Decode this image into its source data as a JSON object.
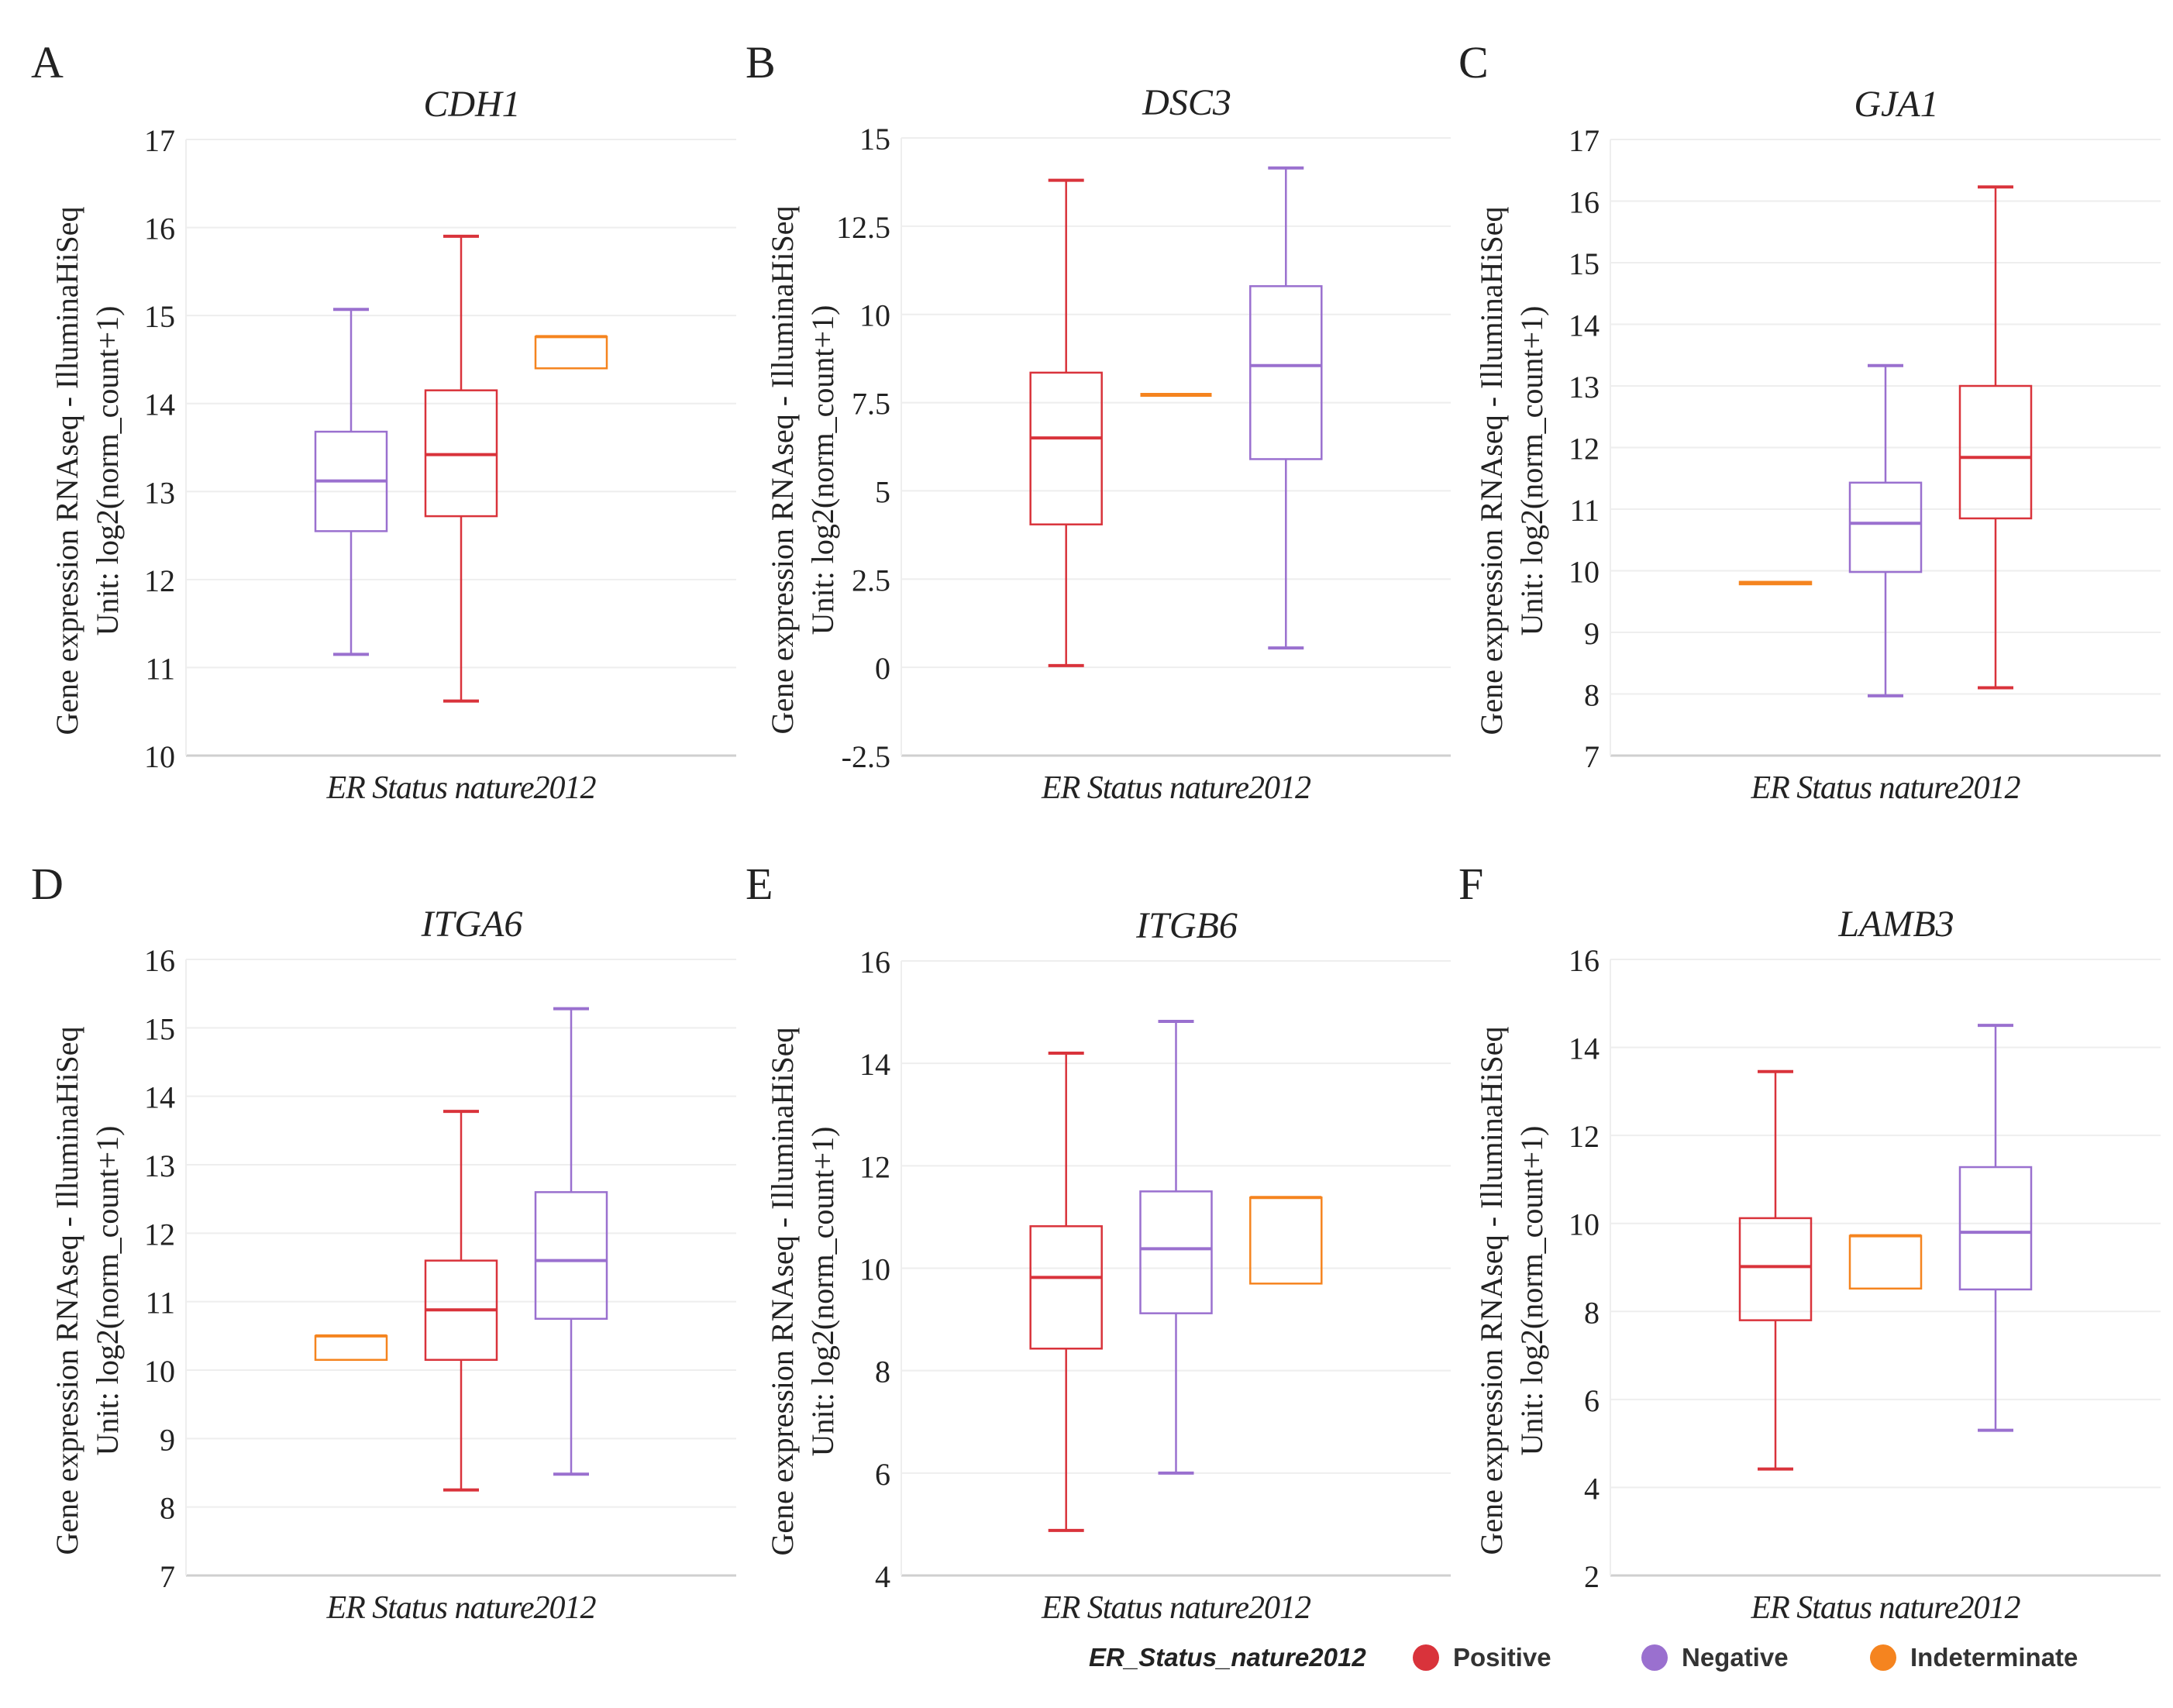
{
  "colors": {
    "Positive": "#d9333b",
    "Negative": "#9a70cf",
    "Indeterminate": "#f5841f",
    "grid": "#eeeeee",
    "axis": "#cfcfcf",
    "text": "#222222"
  },
  "legend": {
    "title": "ER_Status_nature2012",
    "items": [
      {
        "label": "Positive",
        "color": "#d9333b"
      },
      {
        "label": "Negative",
        "color": "#9a70cf"
      },
      {
        "label": "Indeterminate",
        "color": "#f5841f"
      }
    ]
  },
  "chart_data": [
    {
      "panel": "A",
      "type": "box",
      "title": "CDH1",
      "ylabel_line1": "Gene expression RNAseq - IlluminaHiSeq",
      "ylabel_line2": "Unit: log2(norm_count+1)",
      "xlabel": "ER Status nature2012",
      "ylim": [
        10,
        17
      ],
      "yticks": [
        "10",
        "11",
        "12",
        "13",
        "14",
        "15",
        "16",
        "17"
      ],
      "ytick_values": [
        10,
        11,
        12,
        13,
        14,
        15,
        16,
        17
      ],
      "boxes": [
        {
          "group": "Negative",
          "min": 11.15,
          "q1": 12.55,
          "median": 13.12,
          "q3": 13.68,
          "max": 15.07
        },
        {
          "group": "Positive",
          "min": 10.62,
          "q1": 12.72,
          "median": 13.42,
          "q3": 14.15,
          "max": 15.9
        },
        {
          "group": "Indeterminate",
          "min": 14.4,
          "q1": 14.4,
          "median": 14.76,
          "q3": 14.76,
          "max": 14.76
        }
      ]
    },
    {
      "panel": "B",
      "type": "box",
      "title": "DSC3",
      "ylabel_line1": "Gene expression RNAseq - IlluminaHiSeq",
      "ylabel_line2": "Unit: log2(norm_count+1)",
      "xlabel": "ER Status nature2012",
      "ylim": [
        -2.5,
        15
      ],
      "yticks": [
        "-2.5",
        "0",
        "2.5",
        "5",
        "7.5",
        "10",
        "12.5",
        "15"
      ],
      "ytick_values": [
        -2.5,
        0,
        2.5,
        5,
        7.5,
        10,
        12.5,
        15
      ],
      "boxes": [
        {
          "group": "Positive",
          "min": 0.05,
          "q1": 4.05,
          "median": 6.5,
          "q3": 8.35,
          "max": 13.8
        },
        {
          "group": "Indeterminate",
          "min": 7.72,
          "q1": 7.72,
          "median": 7.72,
          "q3": 7.72,
          "max": 7.72
        },
        {
          "group": "Negative",
          "min": 0.55,
          "q1": 5.9,
          "median": 8.55,
          "q3": 10.8,
          "max": 14.15
        }
      ]
    },
    {
      "panel": "C",
      "type": "box",
      "title": "GJA1",
      "ylabel_line1": "Gene expression RNAseq - IlluminaHiSeq",
      "ylabel_line2": "Unit: log2(norm_count+1)",
      "xlabel": "ER Status nature2012",
      "ylim": [
        7,
        17
      ],
      "yticks": [
        "7",
        "8",
        "9",
        "10",
        "11",
        "12",
        "13",
        "14",
        "15",
        "16",
        "17"
      ],
      "ytick_values": [
        7,
        8,
        9,
        10,
        11,
        12,
        13,
        14,
        15,
        16,
        17
      ],
      "boxes": [
        {
          "group": "Indeterminate",
          "min": 9.78,
          "q1": 9.78,
          "median": 9.8,
          "q3": 9.82,
          "max": 9.82
        },
        {
          "group": "Negative",
          "min": 7.97,
          "q1": 9.98,
          "median": 10.77,
          "q3": 11.43,
          "max": 13.33
        },
        {
          "group": "Positive",
          "min": 8.1,
          "q1": 10.85,
          "median": 11.84,
          "q3": 13.0,
          "max": 16.23
        }
      ]
    },
    {
      "panel": "D",
      "type": "box",
      "title": "ITGA6",
      "ylabel_line1": "Gene expression RNAseq - IlluminaHiSeq",
      "ylabel_line2": "Unit: log2(norm_count+1)",
      "xlabel": "ER Status nature2012",
      "ylim": [
        7,
        16
      ],
      "yticks": [
        "7",
        "8",
        "9",
        "10",
        "11",
        "12",
        "13",
        "14",
        "15",
        "16"
      ],
      "ytick_values": [
        7,
        8,
        9,
        10,
        11,
        12,
        13,
        14,
        15,
        16
      ],
      "boxes": [
        {
          "group": "Indeterminate",
          "min": 10.15,
          "q1": 10.15,
          "median": 10.5,
          "q3": 10.5,
          "max": 10.5
        },
        {
          "group": "Positive",
          "min": 8.25,
          "q1": 10.15,
          "median": 10.88,
          "q3": 11.6,
          "max": 13.78
        },
        {
          "group": "Negative",
          "min": 8.48,
          "q1": 10.75,
          "median": 11.6,
          "q3": 12.6,
          "max": 15.28
        }
      ]
    },
    {
      "panel": "E",
      "type": "box",
      "title": "ITGB6",
      "ylabel_line1": "Gene expression RNAseq - IlluminaHiSeq",
      "ylabel_line2": "Unit: log2(norm_count+1)",
      "xlabel": "ER Status nature2012",
      "ylim": [
        4,
        16
      ],
      "yticks": [
        "4",
        "6",
        "8",
        "10",
        "12",
        "14",
        "16"
      ],
      "ytick_values": [
        4,
        6,
        8,
        10,
        12,
        14,
        16
      ],
      "boxes": [
        {
          "group": "Positive",
          "min": 4.88,
          "q1": 8.43,
          "median": 9.82,
          "q3": 10.82,
          "max": 14.2
        },
        {
          "group": "Negative",
          "min": 6.0,
          "q1": 9.12,
          "median": 10.38,
          "q3": 11.5,
          "max": 14.82
        },
        {
          "group": "Indeterminate",
          "min": 9.7,
          "q1": 9.7,
          "median": 11.38,
          "q3": 11.38,
          "max": 11.38
        }
      ]
    },
    {
      "panel": "F",
      "type": "box",
      "title": "LAMB3",
      "ylabel_line1": "Gene expression RNAseq - IlluminaHiSeq",
      "ylabel_line2": "Unit: log2(norm_count+1)",
      "xlabel": "ER Status nature2012",
      "ylim": [
        2,
        16
      ],
      "yticks": [
        "2",
        "4",
        "6",
        "8",
        "10",
        "12",
        "14",
        "16"
      ],
      "ytick_values": [
        2,
        4,
        6,
        8,
        10,
        12,
        14,
        16
      ],
      "boxes": [
        {
          "group": "Positive",
          "min": 4.42,
          "q1": 7.8,
          "median": 9.02,
          "q3": 10.12,
          "max": 13.45
        },
        {
          "group": "Indeterminate",
          "min": 8.52,
          "q1": 8.52,
          "median": 9.72,
          "q3": 9.72,
          "max": 9.72
        },
        {
          "group": "Negative",
          "min": 5.3,
          "q1": 8.5,
          "median": 9.8,
          "q3": 11.28,
          "max": 14.5
        }
      ]
    }
  ]
}
